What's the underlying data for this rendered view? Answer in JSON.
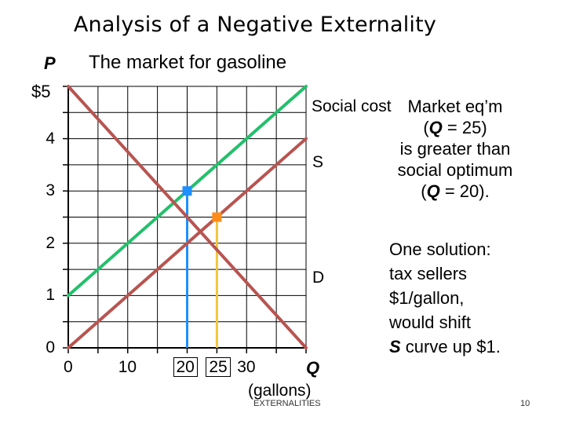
{
  "title": "Analysis of a Negative Externality",
  "subtitle": "The market for gasoline",
  "footer": "EXTERNALITIES",
  "page_number": "10",
  "notes": {
    "market_eq": [
      "Market eq’m",
      "(Q = 25)",
      "is greater than",
      "social optimum",
      "(Q = 20)."
    ],
    "solution": [
      "One solution:",
      "tax sellers",
      "$1/gallon,",
      "would shift",
      "S curve up $1."
    ]
  },
  "colors": {
    "demand": "#b85450",
    "supply": "#b85450",
    "social_cost": "#22c06b",
    "social_optimum_marker": "#1e90ff",
    "market_eq_marker": "#ff8c1a",
    "grid": "#000000"
  },
  "chart_data": {
    "type": "line",
    "xlabel": "Q",
    "xlabel_unit": "(gallons)",
    "ylabel": "P",
    "ylabel_unit": "$5",
    "xlim": [
      0,
      40
    ],
    "ylim": [
      0,
      5
    ],
    "x_ticks": [
      "0",
      "10",
      "20",
      "25",
      "30"
    ],
    "x_ticks_boxed": [
      "20",
      "25"
    ],
    "y_ticks": [
      "0",
      "1",
      "2",
      "3",
      "4"
    ],
    "grid": true,
    "series": [
      {
        "name": "Social cost",
        "x": [
          0,
          40
        ],
        "y": [
          1,
          5
        ]
      },
      {
        "name": "S",
        "x": [
          0,
          40
        ],
        "y": [
          0,
          4
        ]
      },
      {
        "name": "D",
        "x": [
          0,
          40
        ],
        "y": [
          5,
          0
        ]
      }
    ],
    "points": [
      {
        "label": "social optimum",
        "x": 20,
        "y": 3
      },
      {
        "label": "market equilibrium",
        "x": 25,
        "y": 2.5
      }
    ]
  }
}
